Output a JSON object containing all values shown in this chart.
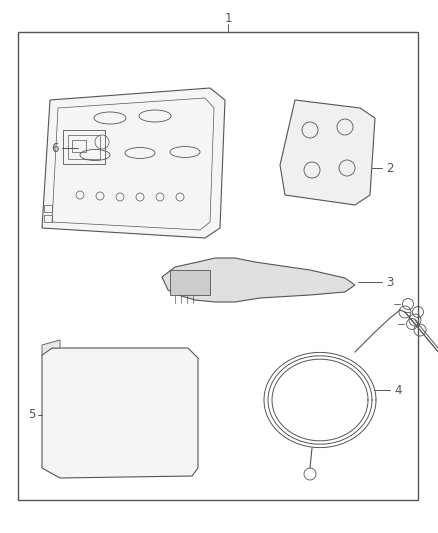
{
  "bg_color": "#ffffff",
  "border_color": "#555555",
  "line_color": "#555555",
  "fig_width": 4.38,
  "fig_height": 5.33,
  "dpi": 100
}
